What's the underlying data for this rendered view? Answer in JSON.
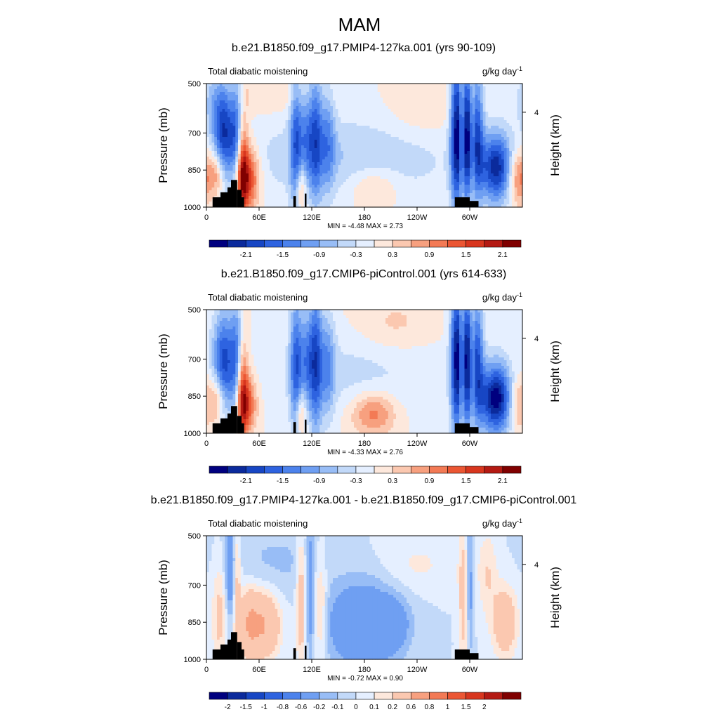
{
  "figure_title": "MAM",
  "chart_data": [
    {
      "type": "heatmap",
      "title": "b.e21.B1850.f09_g17.PMIP4-127ka.001 (yrs 90-109)",
      "left_string": "Total diabatic moistening",
      "units_base": "g/kg day",
      "units_exp": "-1",
      "ylabel": "Pressure (mb)",
      "y2label": "Height (km)",
      "x_ticks": [
        "0",
        "60E",
        "120E",
        "180",
        "120W",
        "60W"
      ],
      "x_tick_lons": [
        0,
        60,
        120,
        180,
        240,
        300
      ],
      "xlim": [
        0,
        360
      ],
      "y_ticks": [
        "500",
        "700",
        "850",
        "1000"
      ],
      "y_tick_values": [
        500,
        700,
        850,
        1000
      ],
      "ylim": [
        1000,
        500
      ],
      "y2_ticks": [
        "4"
      ],
      "y2_tick_pressure": [
        616
      ],
      "stats": "MIN =  -4.48  MAX =   2.73",
      "min": -4.48,
      "max": 2.73,
      "colorbar_labels": [
        "-2.1",
        "-1.5",
        "-0.9",
        "-0.3",
        "0.3",
        "0.9",
        "1.5",
        "2.1"
      ],
      "levels": [
        -2.4,
        -2.1,
        -1.8,
        -1.5,
        -1.2,
        -0.9,
        -0.6,
        -0.3,
        0,
        0.3,
        0.6,
        0.9,
        1.2,
        1.5,
        1.8,
        2.1,
        2.4
      ],
      "features": [
        {
          "lon": 20,
          "p": 710,
          "amp": -2.0,
          "wlon": 9,
          "wp": 140
        },
        {
          "lon": 36,
          "p": 760,
          "amp": -2.4,
          "wlon": 5,
          "wp": 200
        },
        {
          "lon": 39,
          "p": 820,
          "amp": 2.6,
          "wlon": 5,
          "wp": 180
        },
        {
          "lon": 46,
          "p": 880,
          "amp": 1.8,
          "wlon": 10,
          "wp": 90
        },
        {
          "lon": 12,
          "p": 860,
          "amp": 1.2,
          "wlon": 7,
          "wp": 70
        },
        {
          "lon": 8,
          "p": 560,
          "amp": -0.6,
          "wlon": 12,
          "wp": 80
        },
        {
          "lon": 102,
          "p": 720,
          "amp": -1.4,
          "wlon": 5,
          "wp": 200
        },
        {
          "lon": 115,
          "p": 700,
          "amp": -1.0,
          "wlon": 6,
          "wp": 150
        },
        {
          "lon": 125,
          "p": 700,
          "amp": -1.3,
          "wlon": 5,
          "wp": 200
        },
        {
          "lon": 138,
          "p": 720,
          "amp": -1.0,
          "wlon": 6,
          "wp": 150
        },
        {
          "lon": 108,
          "p": 920,
          "amp": 1.0,
          "wlon": 4,
          "wp": 70
        },
        {
          "lon": 190,
          "p": 920,
          "amp": 0.6,
          "wlon": 20,
          "wp": 60
        },
        {
          "lon": 245,
          "p": 620,
          "amp": 0.3,
          "wlon": 30,
          "wp": 80
        },
        {
          "lon": 70,
          "p": 540,
          "amp": 0.3,
          "wlon": 40,
          "wp": 60
        },
        {
          "lon": 160,
          "p": 800,
          "amp": -0.6,
          "wlon": 90,
          "wp": 120
        },
        {
          "lon": 285,
          "p": 700,
          "amp": -2.4,
          "wlon": 5,
          "wp": 220
        },
        {
          "lon": 297,
          "p": 700,
          "amp": -2.2,
          "wlon": 5,
          "wp": 200
        },
        {
          "lon": 309,
          "p": 700,
          "amp": -1.6,
          "wlon": 5,
          "wp": 180
        },
        {
          "lon": 330,
          "p": 840,
          "amp": -2.2,
          "wlon": 13,
          "wp": 100
        },
        {
          "lon": 291,
          "p": 700,
          "amp": 0.9,
          "wlon": 2,
          "wp": 200
        },
        {
          "lon": 303,
          "p": 700,
          "amp": 0.7,
          "wlon": 2,
          "wp": 200
        },
        {
          "lon": 355,
          "p": 880,
          "amp": 1.2,
          "wlon": 8,
          "wp": 80
        }
      ]
    },
    {
      "type": "heatmap",
      "title": "b.e21.B1850.f09_g17.CMIP6-piControl.001 (yrs 614-633)",
      "left_string": "Total diabatic moistening",
      "units_base": "g/kg day",
      "units_exp": "-1",
      "ylabel": "Pressure (mb)",
      "y2label": "Height (km)",
      "x_ticks": [
        "0",
        "60E",
        "120E",
        "180",
        "120W",
        "60W"
      ],
      "x_tick_lons": [
        0,
        60,
        120,
        180,
        240,
        300
      ],
      "xlim": [
        0,
        360
      ],
      "y_ticks": [
        "500",
        "700",
        "850",
        "1000"
      ],
      "y_tick_values": [
        500,
        700,
        850,
        1000
      ],
      "ylim": [
        1000,
        500
      ],
      "y2_ticks": [
        "4"
      ],
      "y2_tick_pressure": [
        616
      ],
      "stats": "MIN =  -4.33  MAX =   2.76",
      "min": -4.33,
      "max": 2.76,
      "colorbar_labels": [
        "-2.1",
        "-1.5",
        "-0.9",
        "-0.3",
        "0.3",
        "0.9",
        "1.5",
        "2.1"
      ],
      "levels": [
        -2.4,
        -2.1,
        -1.8,
        -1.5,
        -1.2,
        -0.9,
        -0.6,
        -0.3,
        0,
        0.3,
        0.6,
        0.9,
        1.2,
        1.5,
        1.8,
        2.1,
        2.4
      ],
      "features": [
        {
          "lon": 20,
          "p": 710,
          "amp": -1.9,
          "wlon": 9,
          "wp": 140
        },
        {
          "lon": 36,
          "p": 760,
          "amp": -2.3,
          "wlon": 5,
          "wp": 200
        },
        {
          "lon": 39,
          "p": 820,
          "amp": 2.6,
          "wlon": 5,
          "wp": 180
        },
        {
          "lon": 46,
          "p": 880,
          "amp": 1.4,
          "wlon": 8,
          "wp": 80
        },
        {
          "lon": 12,
          "p": 860,
          "amp": 1.0,
          "wlon": 6,
          "wp": 70
        },
        {
          "lon": 102,
          "p": 720,
          "amp": -1.5,
          "wlon": 5,
          "wp": 200
        },
        {
          "lon": 115,
          "p": 700,
          "amp": -1.1,
          "wlon": 6,
          "wp": 150
        },
        {
          "lon": 125,
          "p": 700,
          "amp": -1.5,
          "wlon": 5,
          "wp": 220
        },
        {
          "lon": 138,
          "p": 720,
          "amp": -1.0,
          "wlon": 6,
          "wp": 150
        },
        {
          "lon": 108,
          "p": 920,
          "amp": 0.9,
          "wlon": 4,
          "wp": 70
        },
        {
          "lon": 190,
          "p": 920,
          "amp": 1.1,
          "wlon": 18,
          "wp": 60
        },
        {
          "lon": 215,
          "p": 560,
          "amp": 0.4,
          "wlon": 30,
          "wp": 80
        },
        {
          "lon": 165,
          "p": 760,
          "amp": -0.4,
          "wlon": 70,
          "wp": 120
        },
        {
          "lon": 285,
          "p": 700,
          "amp": -2.4,
          "wlon": 5,
          "wp": 220
        },
        {
          "lon": 297,
          "p": 700,
          "amp": -2.2,
          "wlon": 5,
          "wp": 200
        },
        {
          "lon": 309,
          "p": 700,
          "amp": -1.6,
          "wlon": 5,
          "wp": 180
        },
        {
          "lon": 330,
          "p": 860,
          "amp": -2.6,
          "wlon": 13,
          "wp": 100
        },
        {
          "lon": 291,
          "p": 700,
          "amp": 0.9,
          "wlon": 2,
          "wp": 200
        },
        {
          "lon": 303,
          "p": 700,
          "amp": 0.7,
          "wlon": 2,
          "wp": 200
        },
        {
          "lon": 355,
          "p": 880,
          "amp": 0.9,
          "wlon": 8,
          "wp": 80
        }
      ]
    },
    {
      "type": "heatmap",
      "title": "b.e21.B1850.f09_g17.PMIP4-127ka.001 - b.e21.B1850.f09_g17.CMIP6-piControl.001",
      "left_string": "Total diabatic moistening",
      "units_base": "g/kg day",
      "units_exp": "-1",
      "ylabel": "Pressure (mb)",
      "y2label": "Height (km)",
      "x_ticks": [
        "0",
        "60E",
        "120E",
        "180",
        "120W",
        "60W"
      ],
      "x_tick_lons": [
        0,
        60,
        120,
        180,
        240,
        300
      ],
      "xlim": [
        0,
        360
      ],
      "y_ticks": [
        "500",
        "700",
        "850",
        "1000"
      ],
      "y_tick_values": [
        500,
        700,
        850,
        1000
      ],
      "ylim": [
        1000,
        500
      ],
      "y2_ticks": [
        "4"
      ],
      "y2_tick_pressure": [
        616
      ],
      "stats": "MIN =  -0.72  MAX =   0.90",
      "min": -0.72,
      "max": 0.9,
      "colorbar_labels": [
        "-2",
        "-1.5",
        "-1",
        "-0.8",
        "-0.6",
        "-0.2",
        "-0.1",
        "0",
        "0.1",
        "0.2",
        "0.6",
        "0.8",
        "1",
        "1.5",
        "2"
      ],
      "levels": [
        -2,
        -1.5,
        -1,
        -0.8,
        -0.6,
        -0.2,
        -0.1,
        0,
        0.1,
        0.2,
        0.6,
        0.8,
        1,
        1.5,
        2
      ],
      "features": [
        {
          "lon": 62,
          "p": 860,
          "amp": 0.65,
          "wlon": 14,
          "wp": 90
        },
        {
          "lon": 48,
          "p": 850,
          "amp": 0.3,
          "wlon": 6,
          "wp": 100
        },
        {
          "lon": 15,
          "p": 820,
          "amp": 0.25,
          "wlon": 6,
          "wp": 150
        },
        {
          "lon": 27,
          "p": 650,
          "amp": -0.35,
          "wlon": 4,
          "wp": 150
        },
        {
          "lon": 35,
          "p": 700,
          "amp": 0.3,
          "wlon": 3,
          "wp": 180
        },
        {
          "lon": 108,
          "p": 760,
          "amp": 0.35,
          "wlon": 4,
          "wp": 200
        },
        {
          "lon": 118,
          "p": 720,
          "amp": -0.25,
          "wlon": 3,
          "wp": 200
        },
        {
          "lon": 130,
          "p": 800,
          "amp": 0.3,
          "wlon": 5,
          "wp": 150
        },
        {
          "lon": 180,
          "p": 860,
          "amp": -0.5,
          "wlon": 30,
          "wp": 120
        },
        {
          "lon": 213,
          "p": 860,
          "amp": -0.3,
          "wlon": 10,
          "wp": 60
        },
        {
          "lon": 80,
          "p": 600,
          "amp": -0.12,
          "wlon": 40,
          "wp": 100
        },
        {
          "lon": 240,
          "p": 620,
          "amp": 0.12,
          "wlon": 30,
          "wp": 80
        },
        {
          "lon": 293,
          "p": 750,
          "amp": 0.3,
          "wlon": 4,
          "wp": 200
        },
        {
          "lon": 300,
          "p": 700,
          "amp": -0.3,
          "wlon": 3,
          "wp": 200
        },
        {
          "lon": 340,
          "p": 850,
          "amp": 0.4,
          "wlon": 10,
          "wp": 100
        },
        {
          "lon": 320,
          "p": 650,
          "amp": 0.2,
          "wlon": 8,
          "wp": 120
        }
      ]
    }
  ]
}
